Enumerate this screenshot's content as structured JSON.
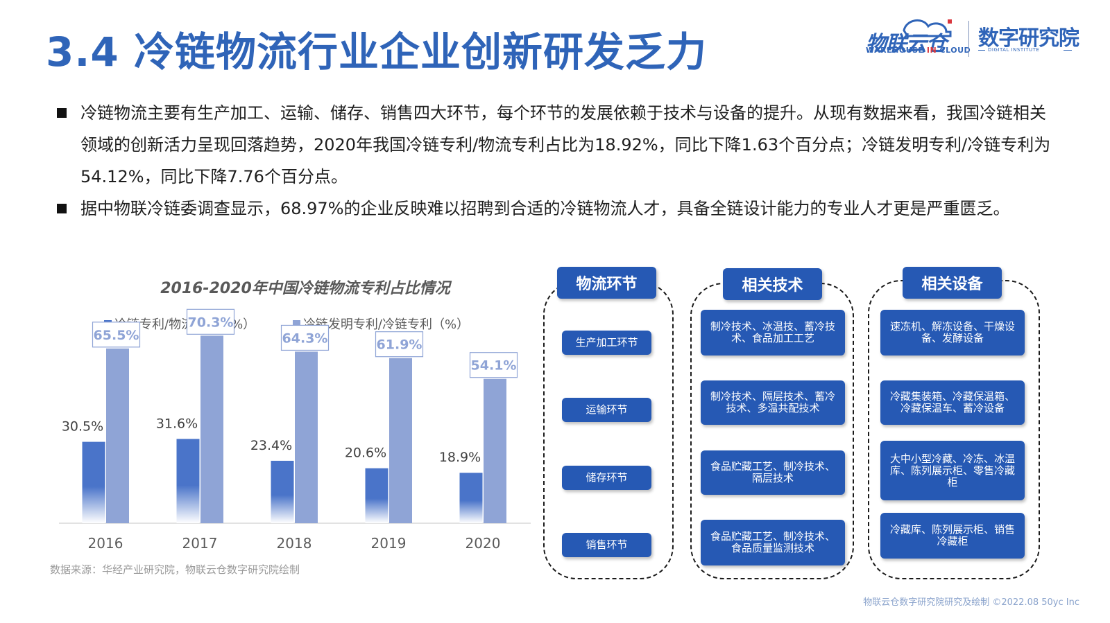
{
  "page": {
    "title": "3.4 冷链物流行业企业创新研发乏力"
  },
  "logo": {
    "brand": "物联云仓",
    "brand_en_parts": [
      "WAREHOUSE ",
      "IN",
      " CLOUD"
    ],
    "institute": "数字研究院",
    "institute_en": "DIGITAL INSTITUTE"
  },
  "bullets": [
    "冷链物流主要有生产加工、运输、储存、销售四大环节，每个环节的发展依赖于技术与设备的提升。从现有数据来看，我国冷链相关领域的创新活力呈现回落趋势，2020年我国冷链专利/物流专利占比为18.92%，同比下降1.63个百分点；冷链发明专利/冷链专利为54.12%，同比下降7.76个百分点。",
    "据中物联冷链委调查显示，68.97%的企业反映难以招聘到合适的冷链物流人才，具备全链设计能力的专业人才更是严重匮乏。"
  ],
  "chart_data": {
    "type": "bar",
    "title": "2016-2020年中国冷链物流专利占比情况",
    "categories": [
      "2016",
      "2017",
      "2018",
      "2019",
      "2020"
    ],
    "series": [
      {
        "name": "冷链专利/物流专利（%）",
        "values": [
          30.5,
          31.6,
          23.4,
          20.6,
          18.9
        ],
        "labels": [
          "30.5%",
          "31.6%",
          "23.4%",
          "20.6%",
          "18.9%"
        ],
        "color": "#4a74c9"
      },
      {
        "name": "冷链发明专利/冷链专利（%）",
        "values": [
          65.5,
          70.3,
          64.3,
          61.9,
          54.1
        ],
        "labels": [
          "65.5%",
          "70.3%",
          "64.3%",
          "61.9%",
          "54.1%"
        ],
        "color": "#8fa4d6"
      }
    ],
    "ylim": [
      0,
      100
    ],
    "grid": false,
    "legend_position": "top-left"
  },
  "source": "数据来源：华经产业研究院，物联云仓数字研究院绘制",
  "footer": "物联云仓数字研究院研究及绘制   ©2022.08 50yc Inc",
  "diagram": {
    "columns": [
      {
        "header": "物流环节",
        "items": [
          "生产加工环节",
          "运输环节",
          "储存环节",
          "销售环节"
        ]
      },
      {
        "header": "相关技术",
        "items": [
          "制冷技术、冰温技、蓄冷技术、食品加工工艺",
          "制冷技术、隔层技术、蓄冷技术、多温共配技术",
          "食品贮藏工艺、制冷技术、隔层技术",
          "食品贮藏工艺、制冷技术、食品质量监测技术"
        ]
      },
      {
        "header": "相关设备",
        "items": [
          "速冻机、解冻设备、干燥设备、发酵设备",
          "冷藏集装箱、冷藏保温箱、冷藏保温车、蓄冷设备",
          "大中小型冷藏、冷冻、冰温库、陈列展示柜、零售冷藏柜",
          "冷藏库、陈列展示柜、销售冷藏柜"
        ]
      }
    ]
  },
  "colors": {
    "accent": "#2f64b8",
    "box": "#2659b4",
    "series1": "#4a74c9",
    "series2": "#8fa4d6",
    "brand_red": "#d9373e"
  }
}
